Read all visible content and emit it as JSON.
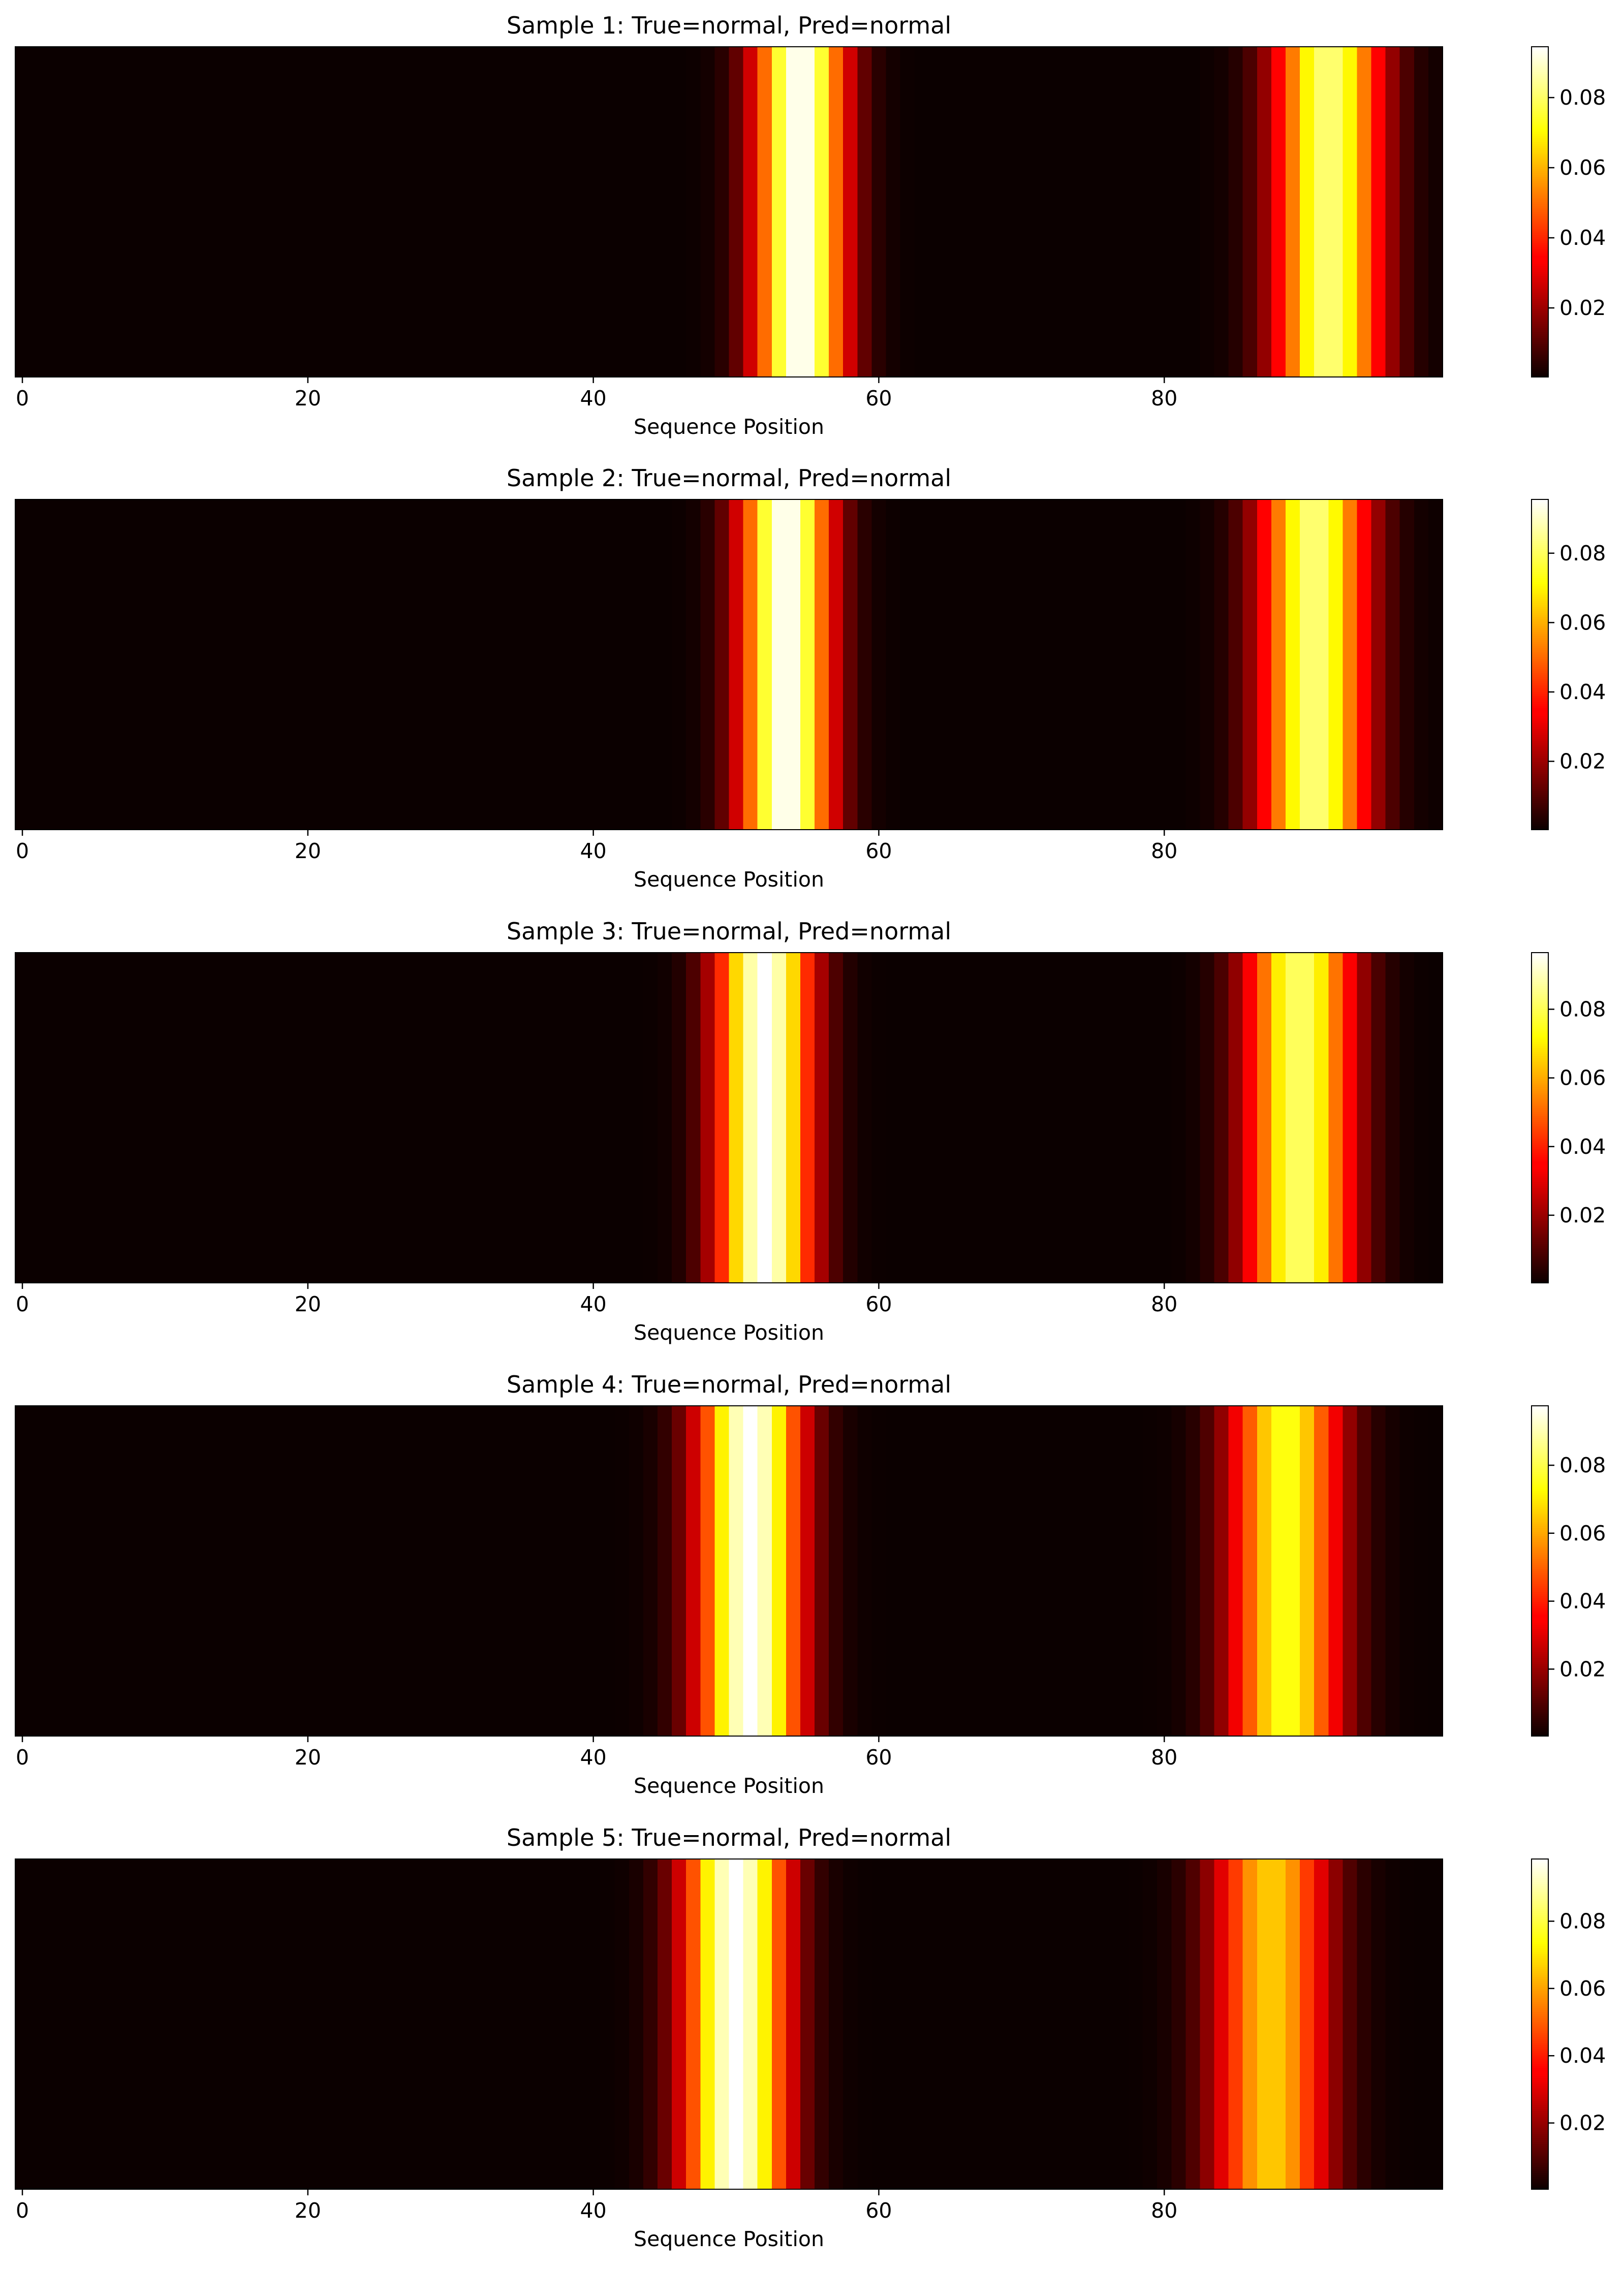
{
  "chart_data": [
    {
      "type": "heatmap",
      "title": "Sample 1: True=normal, Pred=normal",
      "xlabel": "Sequence Position",
      "ylabel": "",
      "x_ticks": [
        0,
        20,
        40,
        60,
        80
      ],
      "xlim": [
        -0.5,
        99.5
      ],
      "colormap": "hot",
      "colorbar": {
        "vmin": 0.0003,
        "vmax": 0.0945,
        "ticks": [
          "0.02",
          "0.04",
          "0.06",
          "0.08"
        ]
      },
      "peaks": [
        {
          "center": 54.5,
          "width": 2.2,
          "height": 0.0945
        },
        {
          "center": 91.5,
          "width": 2.6,
          "height": 0.082
        }
      ]
    },
    {
      "type": "heatmap",
      "title": "Sample 2: True=normal, Pred=normal",
      "xlabel": "Sequence Position",
      "ylabel": "",
      "x_ticks": [
        0,
        20,
        40,
        60,
        80
      ],
      "xlim": [
        -0.5,
        99.5
      ],
      "colormap": "hot",
      "colorbar": {
        "vmin": 0.0003,
        "vmax": 0.0955,
        "ticks": [
          "0.02",
          "0.04",
          "0.06",
          "0.08"
        ]
      },
      "peaks": [
        {
          "center": 53.5,
          "width": 2.2,
          "height": 0.0955
        },
        {
          "center": 90.5,
          "width": 2.6,
          "height": 0.083
        }
      ]
    },
    {
      "type": "heatmap",
      "title": "Sample 3: True=normal, Pred=normal",
      "xlabel": "Sequence Position",
      "ylabel": "",
      "x_ticks": [
        0,
        20,
        40,
        60,
        80
      ],
      "xlim": [
        -0.5,
        99.5
      ],
      "colormap": "hot",
      "colorbar": {
        "vmin": 0.0003,
        "vmax": 0.0965,
        "ticks": [
          "0.02",
          "0.04",
          "0.06",
          "0.08"
        ]
      },
      "peaks": [
        {
          "center": 52.0,
          "width": 2.3,
          "height": 0.0965
        },
        {
          "center": 89.5,
          "width": 2.6,
          "height": 0.082
        }
      ]
    },
    {
      "type": "heatmap",
      "title": "Sample 4: True=normal, Pred=normal",
      "xlabel": "Sequence Position",
      "ylabel": "",
      "x_ticks": [
        0,
        20,
        40,
        60,
        80
      ],
      "xlim": [
        -0.5,
        99.5
      ],
      "colormap": "hot",
      "colorbar": {
        "vmin": 0.0003,
        "vmax": 0.0975,
        "ticks": [
          "0.02",
          "0.04",
          "0.06",
          "0.08"
        ]
      },
      "peaks": [
        {
          "center": 51.0,
          "width": 2.5,
          "height": 0.0975
        },
        {
          "center": 88.5,
          "width": 2.7,
          "height": 0.075
        }
      ]
    },
    {
      "type": "heatmap",
      "title": "Sample 5: True=normal, Pred=normal",
      "xlabel": "Sequence Position",
      "ylabel": "",
      "x_ticks": [
        0,
        20,
        40,
        60,
        80
      ],
      "xlim": [
        -0.5,
        99.5
      ],
      "colormap": "hot",
      "colorbar": {
        "vmin": 0.0003,
        "vmax": 0.0985,
        "ticks": [
          "0.02",
          "0.04",
          "0.06",
          "0.08"
        ]
      },
      "peaks": [
        {
          "center": 50.0,
          "width": 2.5,
          "height": 0.0985
        },
        {
          "center": 87.5,
          "width": 2.8,
          "height": 0.066
        }
      ]
    }
  ]
}
